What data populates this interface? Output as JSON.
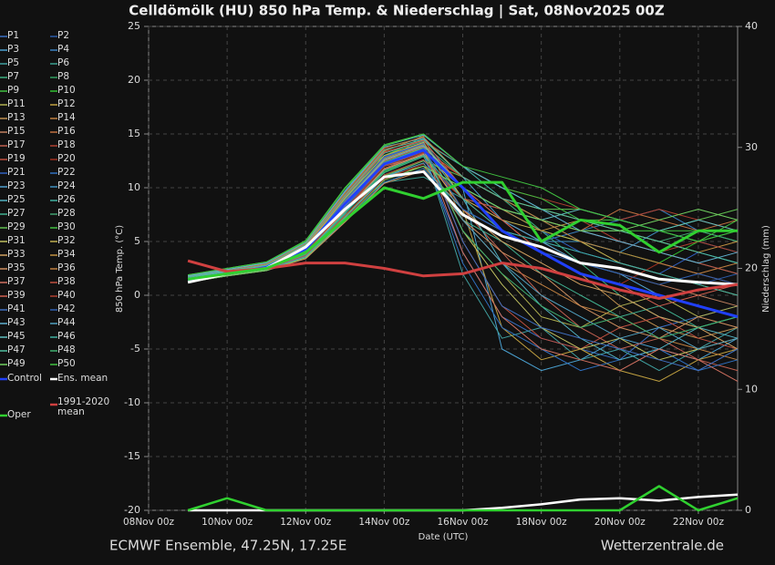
{
  "chart_data": {
    "type": "line",
    "title": "Celldömölk  (HU)  850 hPa Temp. & Niederschlag | Sat, 08Nov2025 00Z",
    "x_label": "Date (UTC)",
    "y_label": "850 hPa Temp. (°C)",
    "y2_label": "Niederschlag (mm)",
    "footer_left": "ECMWF Ensemble, 47.25N, 17.25E",
    "footer_right": "Wetterzentrale.de",
    "x": [
      1,
      2,
      3,
      4,
      5,
      6,
      7,
      8,
      9,
      10,
      11,
      12,
      13,
      14,
      15
    ],
    "xlim": [
      0,
      15
    ],
    "xticks": [
      {
        "value": 0,
        "label": "08Nov 00z"
      },
      {
        "value": 2,
        "label": "10Nov 00z"
      },
      {
        "value": 4,
        "label": "12Nov 00z"
      },
      {
        "value": 6,
        "label": "14Nov 00z"
      },
      {
        "value": 8,
        "label": "16Nov 00z"
      },
      {
        "value": 10,
        "label": "18Nov 00z"
      },
      {
        "value": 12,
        "label": "20Nov 00z"
      },
      {
        "value": 14,
        "label": "22Nov 00z"
      }
    ],
    "ylim": [
      -20,
      25
    ],
    "yticks": [
      -20,
      -15,
      -10,
      -5,
      0,
      5,
      10,
      15,
      20,
      25
    ],
    "y2lim": [
      0,
      40
    ],
    "y2ticks": [
      0,
      10,
      20,
      30,
      40
    ],
    "grid": true,
    "series": [
      {
        "name": "P1",
        "color": "#3a6fc4",
        "values": [
          1.5,
          2,
          2.8,
          4.5,
          9,
          12,
          13,
          4,
          -2,
          -4,
          -5,
          -6,
          -3,
          -2,
          -1
        ]
      },
      {
        "name": "P2",
        "color": "#2a5aa8",
        "values": [
          1.8,
          2.2,
          2.5,
          4,
          8,
          11,
          12,
          8,
          6,
          5,
          4,
          3,
          2,
          1,
          2
        ]
      },
      {
        "name": "P3",
        "color": "#4aa0d0",
        "values": [
          1.2,
          1.8,
          2.6,
          5,
          9.5,
          12.5,
          14,
          10,
          -5,
          -7,
          -6,
          -4,
          -5,
          -6,
          -4
        ]
      },
      {
        "name": "P4",
        "color": "#3a80c0",
        "values": [
          1.4,
          2.1,
          2.4,
          3.5,
          7,
          11,
          12.5,
          9,
          7,
          5,
          6,
          7,
          8,
          6,
          5
        ]
      },
      {
        "name": "P5",
        "color": "#40a0a0",
        "values": [
          1.6,
          1.9,
          2.7,
          4.2,
          8.5,
          12,
          13.5,
          2,
          -4,
          -3,
          -6,
          -5,
          -7,
          -5,
          -3
        ]
      },
      {
        "name": "P6",
        "color": "#3aa090",
        "values": [
          1.3,
          2,
          2.3,
          3.8,
          7.5,
          10.5,
          11,
          9,
          8,
          7,
          5,
          4,
          3,
          2,
          1
        ]
      },
      {
        "name": "P7",
        "color": "#3ab080",
        "values": [
          1.7,
          2.3,
          2.9,
          4.6,
          9,
          13,
          14,
          11,
          9,
          6,
          3,
          0,
          -2,
          -3,
          -2
        ]
      },
      {
        "name": "P8",
        "color": "#30a060",
        "values": [
          1.5,
          2.1,
          2.6,
          4.4,
          8,
          12,
          15,
          12,
          10,
          8,
          7,
          6,
          5,
          4,
          3
        ]
      },
      {
        "name": "P9",
        "color": "#40c040",
        "values": [
          1.9,
          2.4,
          3,
          5,
          10,
          13,
          14.5,
          11,
          9,
          8,
          7,
          7,
          6,
          6,
          5
        ]
      },
      {
        "name": "P10",
        "color": "#30c030",
        "values": [
          1.4,
          2,
          2.5,
          3.9,
          7.8,
          11.5,
          13,
          10,
          8,
          6,
          5,
          4,
          3,
          5,
          6
        ]
      },
      {
        "name": "P11",
        "color": "#b0b050",
        "values": [
          1.6,
          2.2,
          2.6,
          4.1,
          8.2,
          12.2,
          13.8,
          6,
          2,
          -2,
          -3,
          -1,
          0,
          -2,
          -1
        ]
      },
      {
        "name": "P12",
        "color": "#c0a040",
        "values": [
          1.2,
          1.9,
          2.4,
          3.7,
          7.2,
          11,
          12,
          8,
          -3,
          -6,
          -5,
          -7,
          -8,
          -6,
          -5
        ]
      },
      {
        "name": "P13",
        "color": "#c09050",
        "values": [
          1.5,
          2.1,
          2.7,
          4.3,
          8.6,
          12.8,
          14.2,
          9,
          6,
          4,
          2,
          -1,
          -3,
          -4,
          -3
        ]
      },
      {
        "name": "P14",
        "color": "#c08040",
        "values": [
          1.8,
          2.3,
          2.8,
          4.7,
          9.2,
          13.4,
          14.8,
          7,
          3,
          1,
          -1,
          -2,
          -4,
          -5,
          -6
        ]
      },
      {
        "name": "P15",
        "color": "#c08060",
        "values": [
          1.3,
          2,
          2.5,
          4,
          8,
          12,
          13,
          10,
          7,
          5,
          3,
          2,
          1,
          0,
          -1
        ]
      },
      {
        "name": "P16",
        "color": "#c07040",
        "values": [
          1.6,
          2.2,
          2.6,
          4.2,
          8.4,
          12.4,
          13.6,
          11,
          9,
          7,
          6,
          8,
          7,
          6,
          7
        ]
      },
      {
        "name": "P17",
        "color": "#c06050",
        "values": [
          1.4,
          2,
          2.5,
          3.9,
          7.9,
          11.8,
          13.2,
          8,
          4,
          0,
          -3,
          -5,
          -4,
          -6,
          -7
        ]
      },
      {
        "name": "P18",
        "color": "#b04030",
        "values": [
          1.7,
          2.3,
          2.9,
          4.8,
          9.4,
          13.6,
          14.4,
          12,
          10,
          9,
          8,
          7,
          8,
          7,
          6
        ]
      },
      {
        "name": "P19",
        "color": "#c05040",
        "values": [
          1.5,
          2.1,
          2.6,
          4.4,
          8.7,
          12.6,
          13.9,
          5,
          -1,
          -4,
          -5,
          -3,
          -2,
          -4,
          -5
        ]
      },
      {
        "name": "P20",
        "color": "#a03020",
        "values": [
          1.3,
          1.9,
          2.4,
          3.6,
          7.1,
          10.8,
          12.2,
          9,
          7,
          4,
          2,
          1,
          3,
          2,
          1
        ]
      },
      {
        "name": "P21",
        "color": "#3060c0",
        "values": [
          1.6,
          2.2,
          2.7,
          4.3,
          8.8,
          12.9,
          14.1,
          10,
          8,
          6,
          4,
          3,
          2,
          4,
          3
        ]
      },
      {
        "name": "P22",
        "color": "#3070c0",
        "values": [
          1.4,
          2,
          2.5,
          4,
          8.1,
          12,
          13.4,
          3,
          -3,
          -5,
          -7,
          -6,
          -5,
          -7,
          -6
        ]
      },
      {
        "name": "P23",
        "color": "#50a0d0",
        "values": [
          1.8,
          2.4,
          3,
          4.9,
          9.6,
          13.8,
          14.6,
          11,
          7,
          5,
          3,
          2,
          0,
          -1,
          -2
        ]
      },
      {
        "name": "P24",
        "color": "#4090c0",
        "values": [
          1.2,
          1.8,
          2.3,
          3.5,
          6.9,
          10.5,
          11.8,
          8,
          6,
          5,
          5,
          4,
          6,
          5,
          4
        ]
      },
      {
        "name": "P25",
        "color": "#50b0c0",
        "values": [
          1.5,
          2.1,
          2.6,
          4.2,
          8.4,
          12.3,
          13.7,
          9,
          3,
          -1,
          -4,
          -6,
          -5,
          -3,
          -4
        ]
      },
      {
        "name": "P26",
        "color": "#40b0a0",
        "values": [
          1.7,
          2.3,
          2.8,
          4.6,
          9.1,
          13.2,
          14.3,
          12,
          9,
          7,
          6,
          5,
          4,
          3,
          2
        ]
      },
      {
        "name": "P27",
        "color": "#40b090",
        "values": [
          1.4,
          2,
          2.5,
          3.8,
          7.6,
          11.4,
          12.9,
          7,
          5,
          2,
          0,
          -2,
          -1,
          -3,
          -2
        ]
      },
      {
        "name": "P28",
        "color": "#40a070",
        "values": [
          1.6,
          2.2,
          2.7,
          4.4,
          8.9,
          12.8,
          14,
          10,
          8,
          7,
          6,
          6,
          5,
          6,
          5
        ]
      },
      {
        "name": "P29",
        "color": "#60c050",
        "values": [
          1.3,
          1.9,
          2.4,
          3.7,
          7.3,
          11.1,
          12.5,
          11,
          9,
          8,
          8,
          7,
          6,
          7,
          8
        ]
      },
      {
        "name": "P30",
        "color": "#40c040",
        "values": [
          1.9,
          2.5,
          3.1,
          5.1,
          10,
          14,
          15,
          12,
          10,
          9,
          7,
          6,
          6,
          5,
          6
        ]
      },
      {
        "name": "P31",
        "color": "#c0c060",
        "values": [
          1.5,
          2.1,
          2.6,
          4.1,
          8.3,
          12.1,
          13.5,
          6,
          1,
          -3,
          -5,
          -4,
          -6,
          -5,
          -4
        ]
      },
      {
        "name": "P32",
        "color": "#c0b050",
        "values": [
          1.7,
          2.3,
          2.8,
          4.5,
          9,
          13,
          14.2,
          9,
          7,
          6,
          5,
          3,
          2,
          1,
          0
        ]
      },
      {
        "name": "P33",
        "color": "#d0a060",
        "values": [
          1.4,
          2,
          2.5,
          3.9,
          7.8,
          11.7,
          13.1,
          8,
          5,
          3,
          1,
          0,
          -2,
          -3,
          -5
        ]
      },
      {
        "name": "P34",
        "color": "#c09040",
        "values": [
          1.6,
          2.2,
          2.7,
          4.3,
          8.7,
          12.7,
          14,
          10,
          8,
          6,
          7,
          6,
          5,
          4,
          5
        ]
      },
      {
        "name": "P35",
        "color": "#d09060",
        "values": [
          1.2,
          1.8,
          2.3,
          3.4,
          6.8,
          10.4,
          11.6,
          7,
          4,
          2,
          -1,
          -3,
          -4,
          -2,
          -3
        ]
      },
      {
        "name": "P36",
        "color": "#c08040",
        "values": [
          1.8,
          2.4,
          2.9,
          4.8,
          9.5,
          13.7,
          14.7,
          11,
          9,
          7,
          5,
          4,
          3,
          2,
          3
        ]
      },
      {
        "name": "P37",
        "color": "#d07060",
        "values": [
          1.5,
          2.1,
          2.6,
          4.2,
          8.5,
          12.5,
          13.8,
          4,
          -2,
          -5,
          -6,
          -7,
          -5,
          -6,
          -8
        ]
      },
      {
        "name": "P38",
        "color": "#c05040",
        "values": [
          1.3,
          1.9,
          2.4,
          3.7,
          7.4,
          11.2,
          12.6,
          9,
          8,
          7,
          6,
          5,
          4,
          3,
          2
        ]
      },
      {
        "name": "P39",
        "color": "#d06050",
        "values": [
          1.7,
          2.3,
          2.8,
          4.6,
          9.2,
          13.3,
          14.4,
          10,
          7,
          4,
          2,
          1,
          -1,
          0,
          1
        ]
      },
      {
        "name": "P40",
        "color": "#b04030",
        "values": [
          1.4,
          2,
          2.5,
          4,
          8,
          12,
          13.3,
          11,
          9,
          8,
          7,
          5,
          4,
          5,
          4
        ]
      },
      {
        "name": "P41",
        "color": "#4070c0",
        "values": [
          1.6,
          2.2,
          2.7,
          4.4,
          8.8,
          12.8,
          14.1,
          5,
          -1,
          -3,
          -4,
          -5,
          -6,
          -7,
          -5
        ]
      },
      {
        "name": "P42",
        "color": "#3060b0",
        "values": [
          1.5,
          2.1,
          2.6,
          4.1,
          8.2,
          12.2,
          13.6,
          8,
          6,
          4,
          3,
          2,
          1,
          2,
          1
        ]
      },
      {
        "name": "P43",
        "color": "#60b0d0",
        "values": [
          1.8,
          2.4,
          3,
          4.9,
          9.7,
          13.9,
          14.9,
          12,
          10,
          8,
          6,
          5,
          4,
          3,
          4
        ]
      },
      {
        "name": "P44",
        "color": "#50a0c0",
        "values": [
          1.3,
          1.9,
          2.4,
          3.6,
          7.2,
          11,
          12.3,
          7,
          3,
          0,
          -2,
          -4,
          -3,
          -5,
          -4
        ]
      },
      {
        "name": "P45",
        "color": "#60c0c0",
        "values": [
          1.6,
          2.2,
          2.7,
          4.3,
          8.6,
          12.6,
          13.9,
          10,
          8,
          7,
          8,
          7,
          6,
          7,
          6
        ]
      },
      {
        "name": "P46",
        "color": "#40b0a0",
        "values": [
          1.4,
          2,
          2.5,
          3.9,
          7.7,
          11.6,
          13,
          9,
          6,
          5,
          4,
          3,
          2,
          1,
          0
        ]
      },
      {
        "name": "P47",
        "color": "#50c0a0",
        "values": [
          1.7,
          2.3,
          2.8,
          4.7,
          9.3,
          13.5,
          14.5,
          11,
          9,
          8,
          7,
          6,
          5,
          4,
          3
        ]
      },
      {
        "name": "P48",
        "color": "#40b070",
        "values": [
          1.5,
          2.1,
          2.6,
          4.2,
          8.4,
          12.4,
          13.7,
          6,
          2,
          -1,
          -3,
          -2,
          -4,
          -3,
          -2
        ]
      },
      {
        "name": "P49",
        "color": "#70d060",
        "values": [
          1.2,
          1.8,
          2.3,
          3.5,
          7,
          10.7,
          12,
          10,
          8,
          7,
          6,
          6,
          7,
          8,
          7
        ]
      },
      {
        "name": "P50",
        "color": "#40c040",
        "values": [
          1.9,
          2.5,
          3.1,
          5,
          9.9,
          13.9,
          15,
          12,
          11,
          10,
          8,
          7,
          6,
          5,
          7
        ]
      },
      {
        "name": "Control",
        "color": "#2040ff",
        "values": [
          1.5,
          2,
          2.6,
          4.3,
          8.5,
          12.2,
          13.5,
          10,
          6,
          4,
          2,
          1,
          0,
          -1,
          -2
        ]
      },
      {
        "name": "Ens. mean",
        "color": "#ffffff",
        "values": [
          1.2,
          2,
          2.5,
          4.5,
          8,
          11,
          11.5,
          7.5,
          5.5,
          4.5,
          3,
          2.5,
          1.5,
          1.2,
          1
        ]
      },
      {
        "name": "1991-2020 mean",
        "color": "#d04040",
        "values": [
          3.2,
          2.2,
          2.5,
          3,
          3,
          2.5,
          1.8,
          2,
          3,
          2.5,
          1.5,
          0.5,
          -0.3,
          0.5,
          1
        ]
      },
      {
        "name": "Oper",
        "color": "#30d030",
        "values": [
          1.5,
          2,
          2.5,
          4,
          7,
          10,
          9,
          10.5,
          10.5,
          5,
          7,
          6.5,
          4,
          6,
          6
        ]
      }
    ],
    "precip_series": [
      {
        "color": "#ffffff",
        "axis": "y2",
        "values": [
          0,
          0,
          0,
          0,
          0,
          0,
          0,
          0,
          0.2,
          0.5,
          0.9,
          1,
          0.8,
          1.1,
          1.3
        ]
      },
      {
        "color": "#30d030",
        "axis": "y2",
        "values": [
          0,
          1,
          0,
          0,
          0,
          0,
          0,
          0,
          0,
          0,
          0,
          0,
          2,
          0,
          1
        ]
      }
    ]
  }
}
